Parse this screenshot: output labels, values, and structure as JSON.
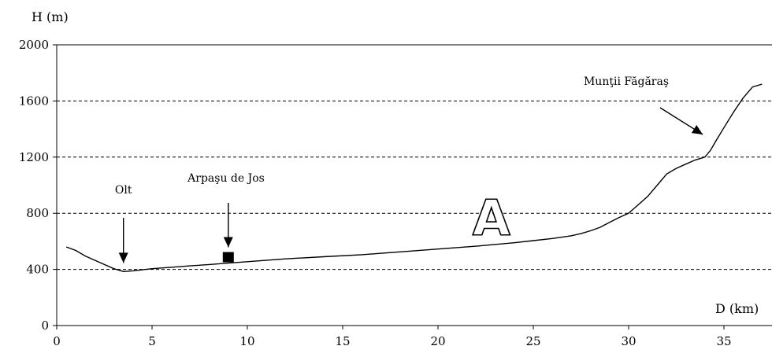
{
  "chart_data": {
    "type": "line",
    "ylabel": "H (m)",
    "xlabel": "D (km)",
    "xlim": [
      0,
      37
    ],
    "ylim": [
      0,
      2000
    ],
    "x_ticks": [
      0,
      5,
      10,
      15,
      20,
      25,
      30,
      35
    ],
    "y_ticks": [
      0,
      400,
      800,
      1200,
      1600,
      2000
    ],
    "grid": "dashed horizontal at 400, 800, 1200, 1600",
    "series": [
      {
        "color": "#000000",
        "x": [
          0.5,
          1.0,
          1.5,
          2.0,
          2.5,
          3.0,
          3.5,
          4.0,
          5.0,
          6.0,
          7.0,
          8.0,
          9.0,
          10.0,
          12.0,
          14.0,
          16.0,
          18.0,
          20.0,
          22.0,
          24.0,
          25.0,
          26.0,
          27.0,
          27.5,
          28.0,
          28.5,
          29.0,
          29.5,
          30.0,
          30.5,
          31.0,
          31.5,
          32.0,
          32.5,
          33.0,
          33.5,
          34.0,
          34.3,
          34.6,
          35.0,
          35.5,
          36.0,
          36.5,
          37.0
        ],
        "y": [
          560,
          535,
          495,
          465,
          435,
          405,
          385,
          390,
          405,
          415,
          425,
          435,
          445,
          455,
          475,
          490,
          505,
          525,
          545,
          565,
          590,
          605,
          620,
          640,
          655,
          675,
          700,
          735,
          770,
          800,
          860,
          920,
          1000,
          1080,
          1120,
          1150,
          1180,
          1200,
          1250,
          1320,
          1410,
          1520,
          1620,
          1700,
          1720
        ]
      }
    ],
    "annotations": [
      {
        "text": "Olt",
        "x": 3.5,
        "y": 390
      },
      {
        "text": "Arpaşu de Jos",
        "x": 9.0,
        "y": 490
      },
      {
        "text": "Munţii Făgăraş",
        "x": 34.3,
        "y": 1210
      },
      {
        "text": "A",
        "x": 22.8,
        "y": 700
      }
    ]
  }
}
